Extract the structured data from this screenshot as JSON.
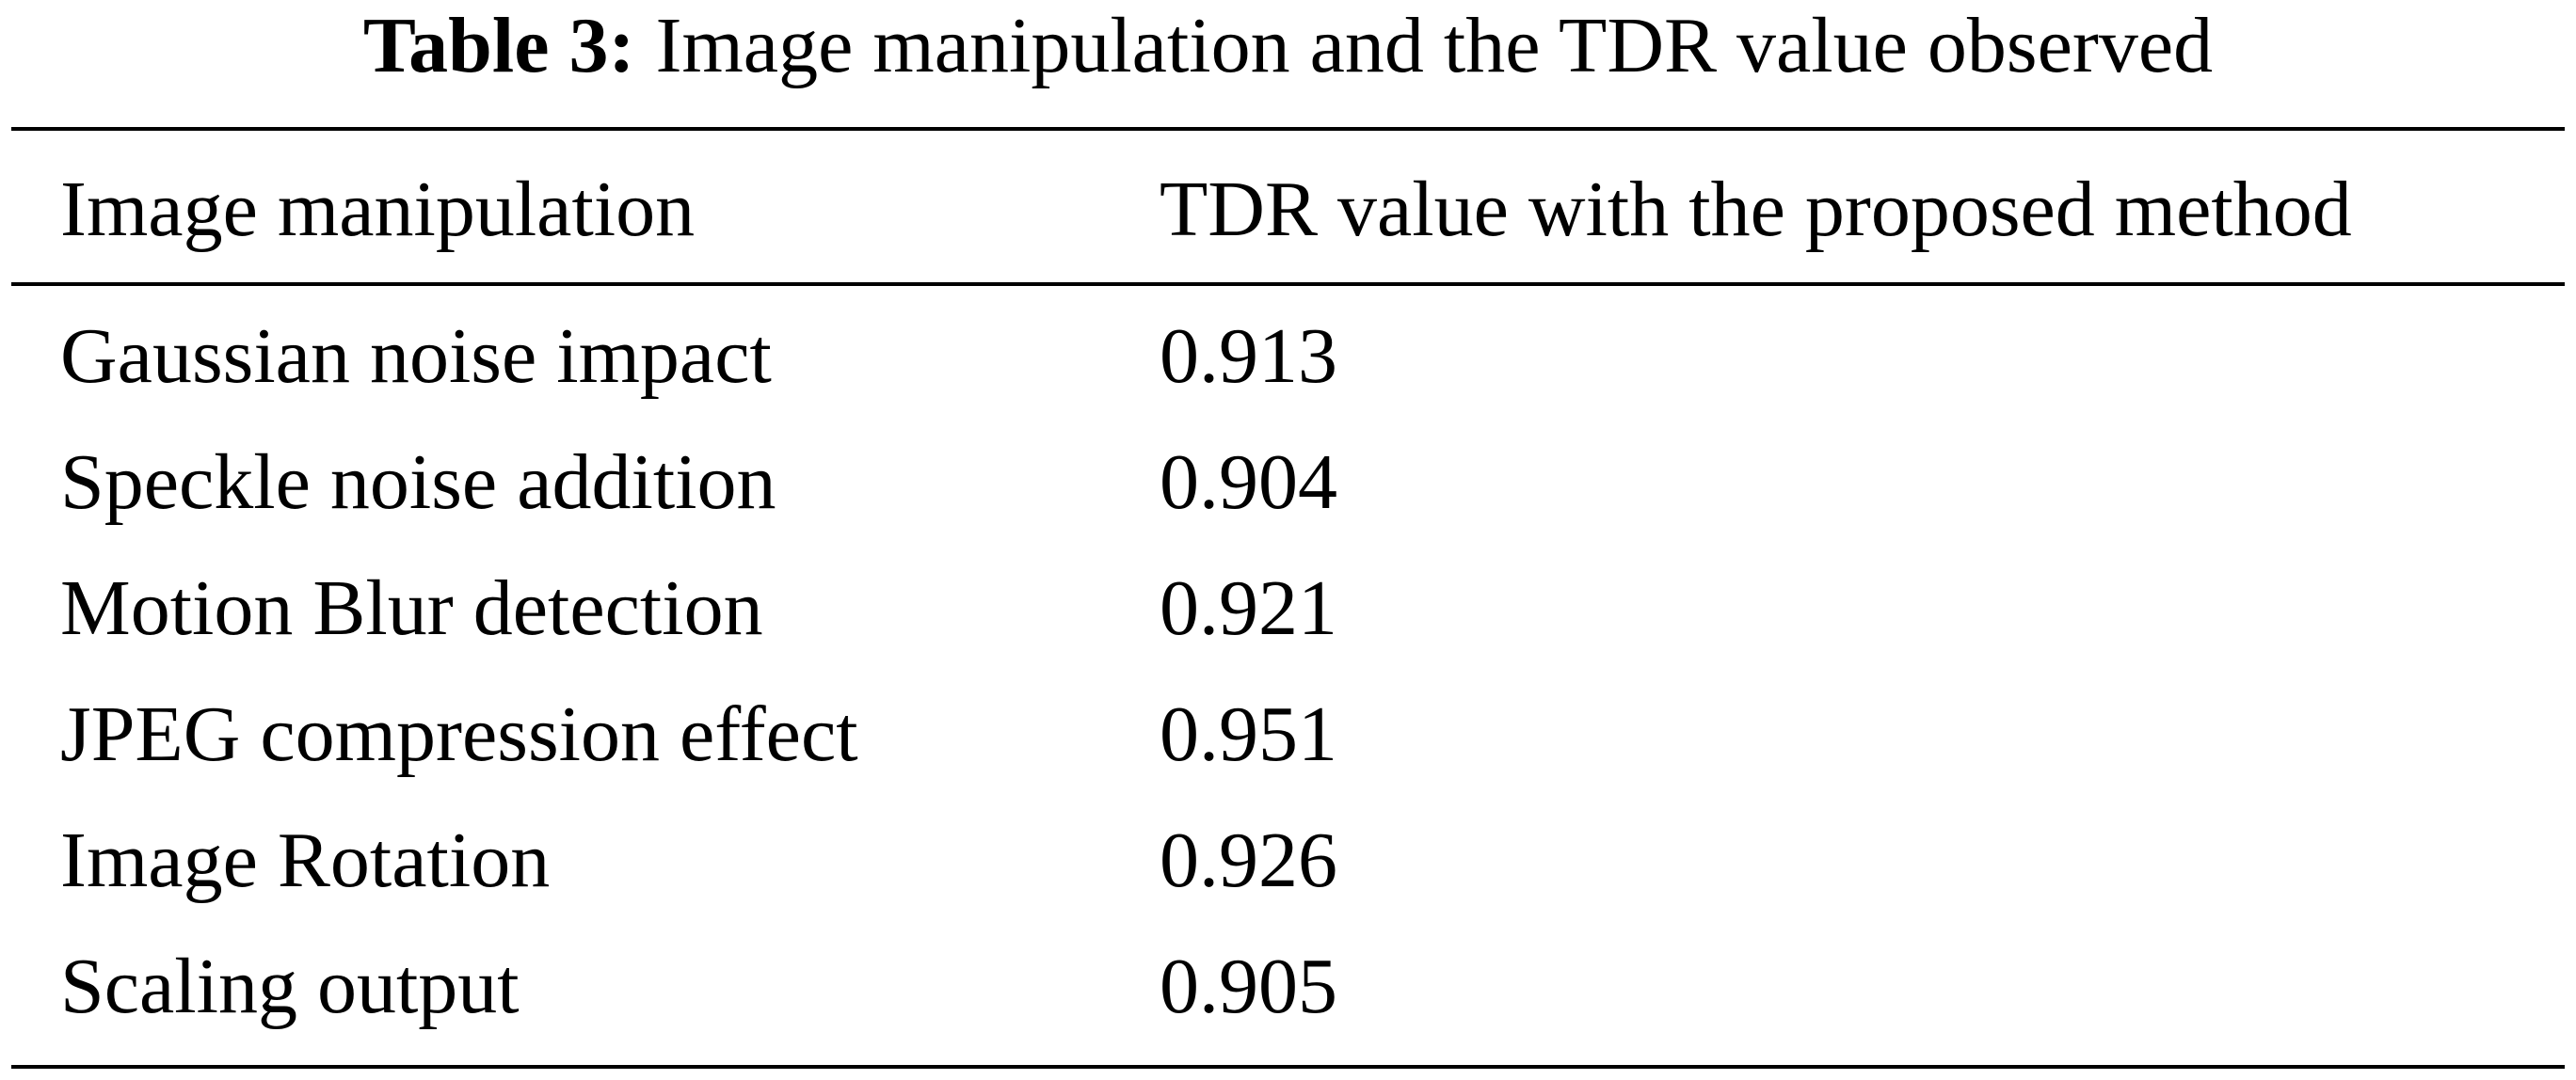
{
  "caption": {
    "label": "Table 3:",
    "text": "Image manipulation and the TDR value observed"
  },
  "table": {
    "columns": [
      "Image manipulation",
      "TDR value with the proposed method"
    ],
    "rows": [
      [
        "Gaussian noise impact",
        "0.913"
      ],
      [
        "Speckle noise addition",
        "0.904"
      ],
      [
        "Motion Blur detection",
        "0.921"
      ],
      [
        "JPEG compression effect",
        "0.951"
      ],
      [
        "Image Rotation",
        "0.926"
      ],
      [
        "Scaling output",
        "0.905"
      ]
    ]
  }
}
